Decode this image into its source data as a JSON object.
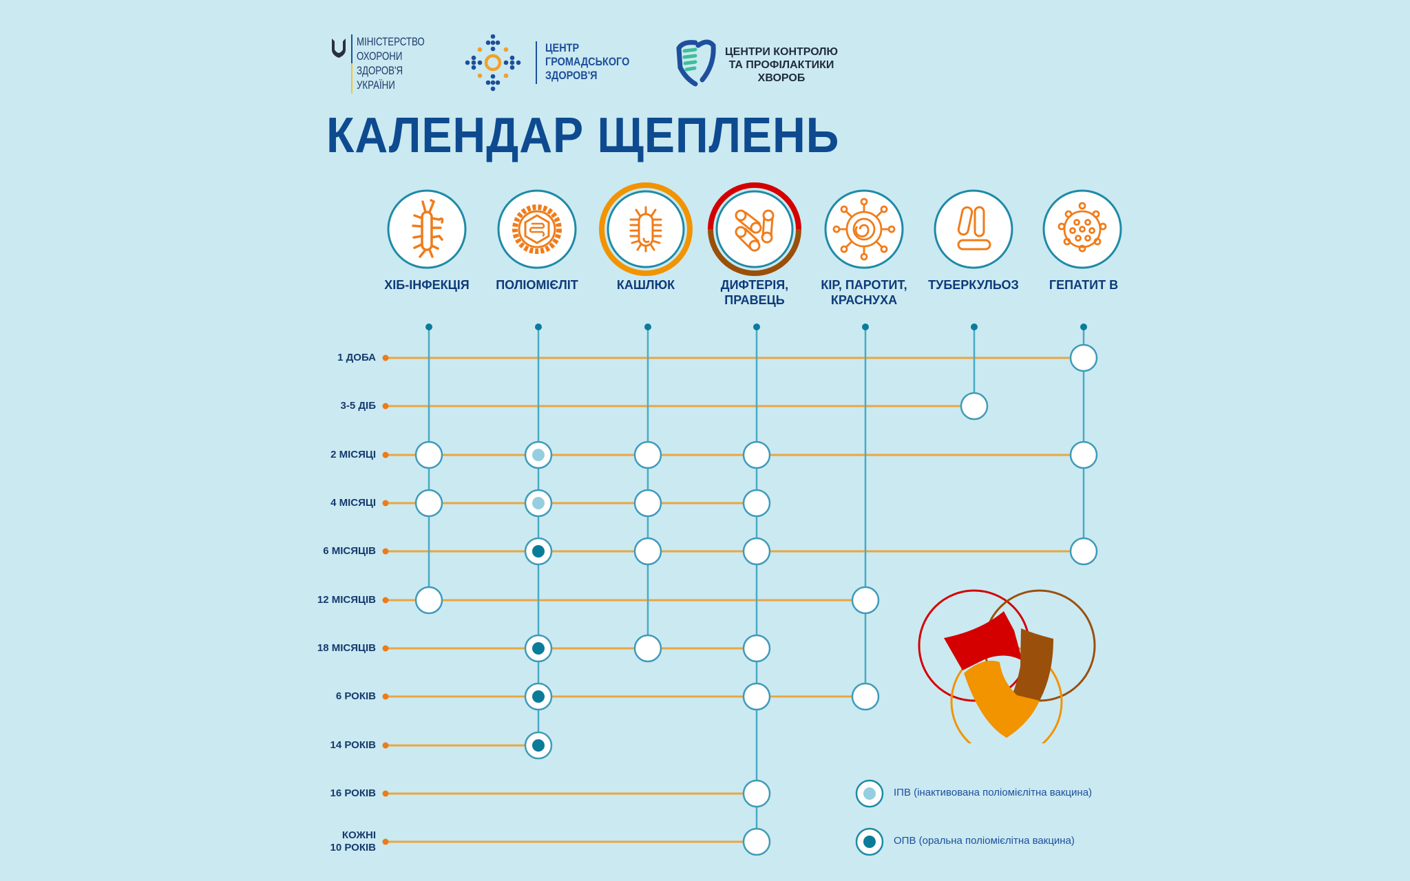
{
  "header": {
    "ministry_logo": {
      "icon": "trident-icon",
      "lines": [
        "МІНІСТЕРСТВО",
        "ОХОРОНИ",
        "ЗДОРОВ'Я",
        "УКРАЇНИ"
      ]
    },
    "public_health_center_logo": {
      "icon": "dots-ring-icon",
      "lines": [
        "ЦЕНТР",
        "ГРОМАДСЬКОГО",
        "ЗДОРОВ'Я"
      ]
    },
    "disease_control_logo": {
      "icon": "shield-heart-icon",
      "lines": [
        "ЦЕНТРИ КОНТРОЛЮ",
        "ТА ПРОФІЛАКТИКИ",
        "ХВОРОБ"
      ]
    },
    "title": "КАЛЕНДАР ЩЕПЛЕНЬ"
  },
  "colors": {
    "background": "#cbe9f1",
    "title": "#0d4a8f",
    "column_line": "#4aaac4",
    "row_line": "#e8a640",
    "row_dot": "#ee7a1a",
    "icon_orange": "#f07c1a",
    "ipv_fill": "#95cfdf",
    "opv_fill": "#0a7c99",
    "shield_red": "#d40000",
    "shield_brown": "#9a4f0a",
    "shield_orange": "#f29300"
  },
  "diseases": [
    {
      "label": "ХІБ-ІНФЕКЦІЯ",
      "icon": "hib-bacterium-icon"
    },
    {
      "label": "ПОЛІОМІЄЛІТ",
      "icon": "polio-virus-icon"
    },
    {
      "label": "КАШЛЮК",
      "icon": "pertussis-bacterium-icon"
    },
    {
      "label": "ДИФТЕРІЯ,",
      "label2": "ПРАВЕЦЬ",
      "icon": "diphtheria-bacteria-icon"
    },
    {
      "label": "КІР, ПАРОТИТ,",
      "label2": "КРАСНУХА",
      "icon": "measles-virus-icon"
    },
    {
      "label": "ТУБЕРКУЛЬОЗ",
      "icon": "tuberculosis-bacilli-icon"
    },
    {
      "label": "ГЕПАТИТ В",
      "icon": "hepatitis-b-virus-icon"
    }
  ],
  "ages": [
    {
      "label": "1 ДОБА"
    },
    {
      "label": "3-5 ДІБ"
    },
    {
      "label": "2 МІСЯЦІ"
    },
    {
      "label": "4 МІСЯЦІ"
    },
    {
      "label": "6 МІСЯЦІВ"
    },
    {
      "label": "12 МІСЯЦІВ"
    },
    {
      "label": "18 МІСЯЦІВ"
    },
    {
      "label": "6 РОКІВ"
    },
    {
      "label": "14 РОКІВ"
    },
    {
      "label": "16 РОКІВ"
    },
    {
      "label": "КОЖНІ",
      "label2": "10 РОКІВ"
    }
  ],
  "schedule_note": "cells: [ageIndex, diseaseIndex, type] where type = plain | ipv | opv",
  "schedule": [
    [
      0,
      6,
      "plain"
    ],
    [
      1,
      5,
      "plain"
    ],
    [
      2,
      0,
      "plain"
    ],
    [
      2,
      1,
      "ipv"
    ],
    [
      2,
      2,
      "plain"
    ],
    [
      2,
      3,
      "plain"
    ],
    [
      2,
      6,
      "plain"
    ],
    [
      3,
      0,
      "plain"
    ],
    [
      3,
      1,
      "ipv"
    ],
    [
      3,
      2,
      "plain"
    ],
    [
      3,
      3,
      "plain"
    ],
    [
      4,
      1,
      "opv"
    ],
    [
      4,
      2,
      "plain"
    ],
    [
      4,
      3,
      "plain"
    ],
    [
      4,
      6,
      "plain"
    ],
    [
      5,
      0,
      "plain"
    ],
    [
      5,
      4,
      "plain"
    ],
    [
      6,
      1,
      "opv"
    ],
    [
      6,
      2,
      "plain"
    ],
    [
      6,
      3,
      "plain"
    ],
    [
      7,
      1,
      "opv"
    ],
    [
      7,
      3,
      "plain"
    ],
    [
      7,
      4,
      "plain"
    ],
    [
      8,
      1,
      "opv"
    ],
    [
      9,
      3,
      "plain"
    ],
    [
      10,
      3,
      "plain"
    ]
  ],
  "legend": {
    "ipv": "ІПВ (інактивована поліомієлітна вакцина)",
    "opv": "ОПВ (оральна поліомієлітна вакцина)"
  },
  "emblem": {
    "icon": "three-circles-shield-icon"
  }
}
